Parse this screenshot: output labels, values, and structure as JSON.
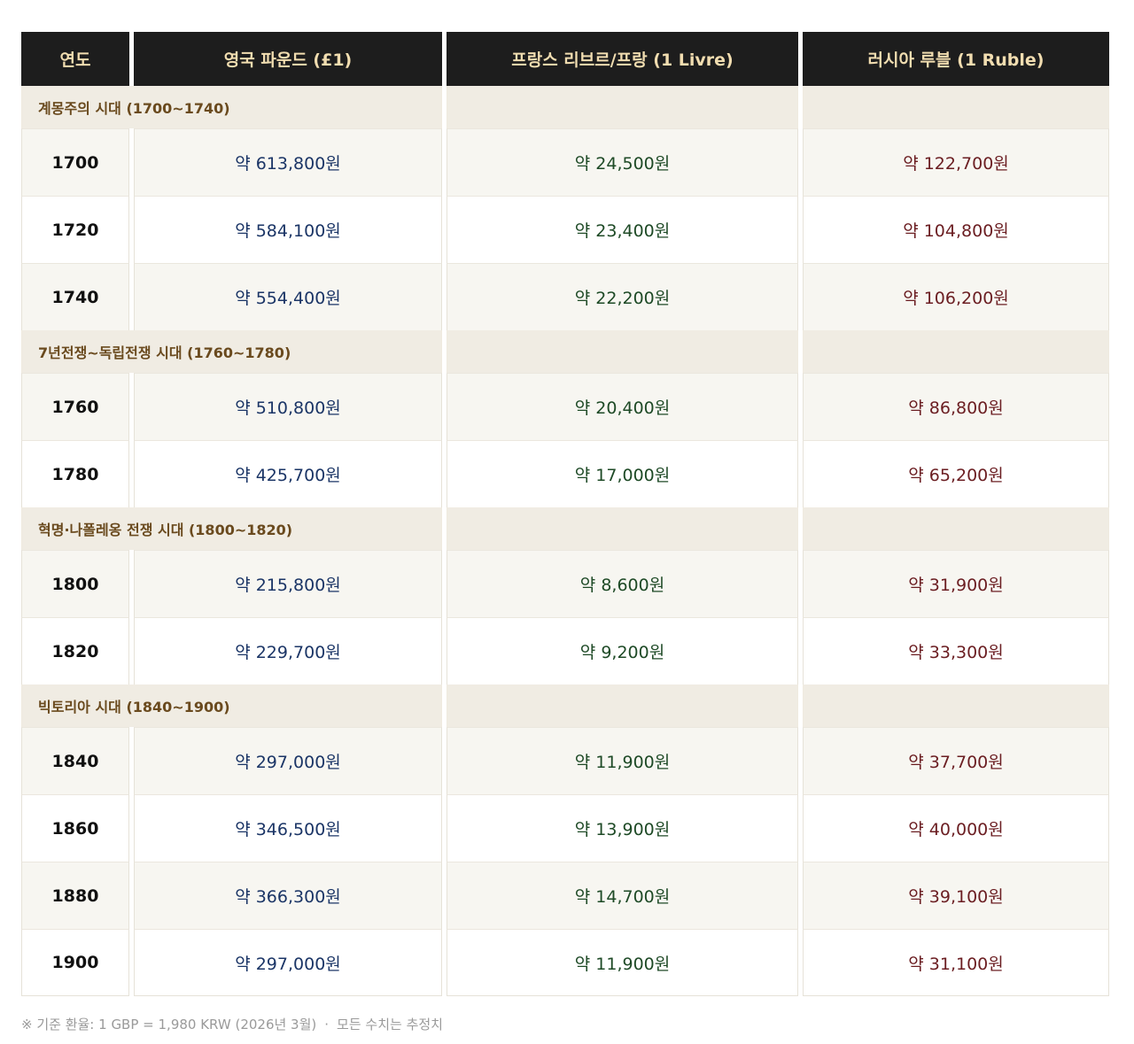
{
  "headers": {
    "year": "연도",
    "gbp": "영국 파운드 (£1)",
    "frf": "프랑스 리브르/프랑 (1 Livre)",
    "rub": "러시아 루블 (1 Ruble)"
  },
  "eras": [
    {
      "label": "계몽주의 시대 (1700~1740)",
      "rows": [
        {
          "year": "1700",
          "gbp": "약 613,800원",
          "frf": "약 24,500원",
          "rub": "약 122,700원"
        },
        {
          "year": "1720",
          "gbp": "약 584,100원",
          "frf": "약 23,400원",
          "rub": "약 104,800원"
        },
        {
          "year": "1740",
          "gbp": "약 554,400원",
          "frf": "약 22,200원",
          "rub": "약 106,200원"
        }
      ]
    },
    {
      "label": "7년전쟁~독립전쟁 시대 (1760~1780)",
      "rows": [
        {
          "year": "1760",
          "gbp": "약 510,800원",
          "frf": "약 20,400원",
          "rub": "약 86,800원"
        },
        {
          "year": "1780",
          "gbp": "약 425,700원",
          "frf": "약 17,000원",
          "rub": "약 65,200원"
        }
      ]
    },
    {
      "label": "혁명·나폴레옹 전쟁 시대 (1800~1820)",
      "rows": [
        {
          "year": "1800",
          "gbp": "약 215,800원",
          "frf": "약 8,600원",
          "rub": "약 31,900원"
        },
        {
          "year": "1820",
          "gbp": "약 229,700원",
          "frf": "약 9,200원",
          "rub": "약 33,300원"
        }
      ]
    },
    {
      "label": "빅토리아 시대 (1840~1900)",
      "rows": [
        {
          "year": "1840",
          "gbp": "약 297,000원",
          "frf": "약 11,900원",
          "rub": "약 37,700원"
        },
        {
          "year": "1860",
          "gbp": "약 346,500원",
          "frf": "약 13,900원",
          "rub": "약 40,000원"
        },
        {
          "year": "1880",
          "gbp": "약 366,300원",
          "frf": "약 14,700원",
          "rub": "약 39,100원"
        },
        {
          "year": "1900",
          "gbp": "약 297,000원",
          "frf": "약 11,900원",
          "rub": "약 31,100원"
        }
      ]
    }
  ],
  "footnote": {
    "basis": "※ 기준 환율: 1 GBP = 1,980 KRW (2026년 3월)",
    "separator": "·",
    "note": "모든 수치는 추정치"
  },
  "colors": {
    "header_bg": "#1d1d1d",
    "header_text": "#f1ddb0",
    "era_bg": "#f0ece3",
    "era_text": "#6a4a1e",
    "gbp_text": "#1b3566",
    "frf_text": "#1e4a26",
    "rub_text": "#6b1e22"
  }
}
